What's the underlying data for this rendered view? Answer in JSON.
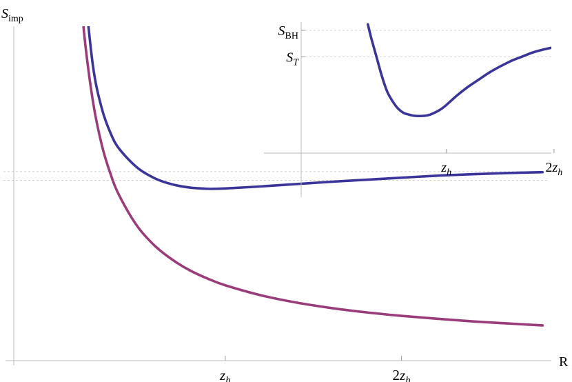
{
  "chart_data": [
    {
      "type": "line",
      "title": "",
      "xlabel": "R",
      "ylabel_main": "S",
      "ylabel_sub": "imp",
      "x_ticks": [
        {
          "x": 1,
          "main": "z",
          "sub": "h",
          "prefix": ""
        },
        {
          "x": 2,
          "main": "z",
          "sub": "h",
          "prefix": "2"
        }
      ],
      "xlim": [
        -0.2,
        2.85
      ],
      "ylim": [
        0,
        1.15
      ],
      "grid": false,
      "reference_lines_y": [
        0.62,
        0.65
      ],
      "colors": {
        "upper": "#3b3599",
        "lower": "#9a3c7a",
        "axis": "#bbbbbb",
        "reference": "#d2d2d2"
      },
      "series": [
        {
          "key": "upper",
          "x": [
            0.2,
            0.25,
            0.3,
            0.35,
            0.4,
            0.5,
            0.6,
            0.7,
            0.8,
            0.9,
            0.95,
            1.0,
            1.2,
            1.4,
            1.6,
            1.8,
            2.0,
            2.2,
            2.4,
            2.6,
            2.8
          ],
          "y": [
            1.29,
            1.01,
            0.866,
            0.781,
            0.727,
            0.664,
            0.627,
            0.606,
            0.595,
            0.591,
            0.591,
            0.592,
            0.599,
            0.607,
            0.615,
            0.622,
            0.629,
            0.636,
            0.641,
            0.645,
            0.648
          ]
        },
        {
          "key": "lower",
          "x": [
            0.18,
            0.2,
            0.25,
            0.3,
            0.35,
            0.4,
            0.5,
            0.6,
            0.7,
            0.8,
            0.9,
            1.0,
            1.2,
            1.4,
            1.6,
            1.8,
            2.0,
            2.2,
            2.4,
            2.6,
            2.8
          ],
          "y": [
            1.29,
            1.12,
            0.888,
            0.74,
            0.64,
            0.566,
            0.463,
            0.395,
            0.347,
            0.31,
            0.282,
            0.259,
            0.225,
            0.2,
            0.181,
            0.166,
            0.154,
            0.144,
            0.135,
            0.128,
            0.121
          ]
        }
      ]
    },
    {
      "type": "line",
      "title": "",
      "xlabel": "",
      "x_ticks": [
        {
          "x": 1,
          "main": "z",
          "sub": "h",
          "prefix": ""
        },
        {
          "x": 2,
          "main": "z",
          "sub": "h",
          "prefix": "2"
        }
      ],
      "y_ticks": [
        {
          "y": 0.6,
          "main": "S",
          "sub": "T",
          "sub_italic": true
        },
        {
          "y": 0.82,
          "main": "S",
          "sub": "BH",
          "sub_italic": false
        }
      ],
      "xlim": [
        -0.35,
        1.975
      ],
      "ylim": [
        -0.2,
        0.9
      ],
      "grid": false,
      "reference_lines_y": [
        0.6,
        0.82
      ],
      "colors": {
        "curve": "#3b3599",
        "axis": "#bbbbbb",
        "reference": "#d2d2d2"
      },
      "series": [
        {
          "key": "curve",
          "x": [
            0.27,
            0.3,
            0.35,
            0.4,
            0.45,
            0.5,
            0.55,
            0.6,
            0.65,
            0.7,
            0.75,
            0.8,
            0.85,
            0.9,
            0.95,
            1.0,
            1.1,
            1.2,
            1.3,
            1.4,
            1.5,
            1.6,
            1.7,
            1.8,
            1.9,
            2.0
          ],
          "y": [
            0.87,
            0.76,
            0.6,
            0.44,
            0.31,
            0.23,
            0.17,
            0.135,
            0.12,
            0.11,
            0.108,
            0.11,
            0.12,
            0.14,
            0.165,
            0.2,
            0.28,
            0.35,
            0.41,
            0.47,
            0.52,
            0.565,
            0.6,
            0.635,
            0.66,
            0.68
          ]
        }
      ]
    }
  ]
}
